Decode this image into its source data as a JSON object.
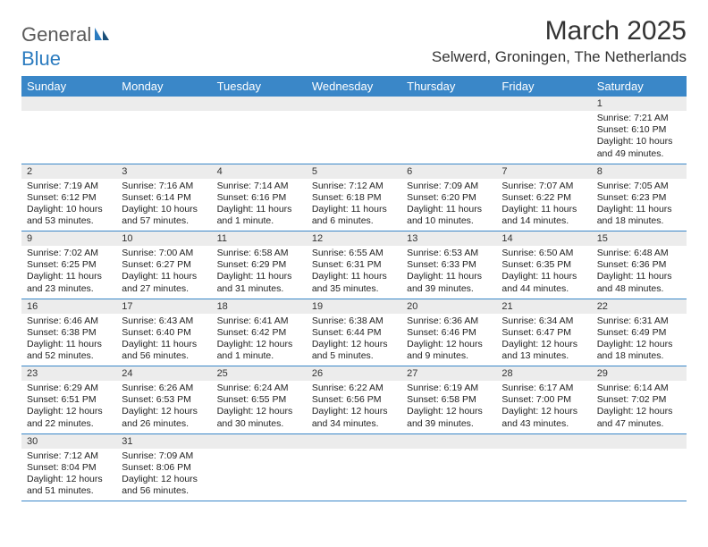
{
  "logo": {
    "word1": "General",
    "word2": "Blue"
  },
  "title": "March 2025",
  "location": "Selwerd, Groningen, The Netherlands",
  "day_headers": [
    "Sunday",
    "Monday",
    "Tuesday",
    "Wednesday",
    "Thursday",
    "Friday",
    "Saturday"
  ],
  "colors": {
    "header_bg": "#3a87c8",
    "header_text": "#ffffff",
    "daynum_bg": "#ececec",
    "border": "#3a87c8",
    "logo_gray": "#5a5a5a",
    "logo_blue": "#2b7bbf"
  },
  "weeks": [
    [
      null,
      null,
      null,
      null,
      null,
      null,
      {
        "n": "1",
        "sr": "Sunrise: 7:21 AM",
        "ss": "Sunset: 6:10 PM",
        "dl": "Daylight: 10 hours and 49 minutes."
      }
    ],
    [
      {
        "n": "2",
        "sr": "Sunrise: 7:19 AM",
        "ss": "Sunset: 6:12 PM",
        "dl": "Daylight: 10 hours and 53 minutes."
      },
      {
        "n": "3",
        "sr": "Sunrise: 7:16 AM",
        "ss": "Sunset: 6:14 PM",
        "dl": "Daylight: 10 hours and 57 minutes."
      },
      {
        "n": "4",
        "sr": "Sunrise: 7:14 AM",
        "ss": "Sunset: 6:16 PM",
        "dl": "Daylight: 11 hours and 1 minute."
      },
      {
        "n": "5",
        "sr": "Sunrise: 7:12 AM",
        "ss": "Sunset: 6:18 PM",
        "dl": "Daylight: 11 hours and 6 minutes."
      },
      {
        "n": "6",
        "sr": "Sunrise: 7:09 AM",
        "ss": "Sunset: 6:20 PM",
        "dl": "Daylight: 11 hours and 10 minutes."
      },
      {
        "n": "7",
        "sr": "Sunrise: 7:07 AM",
        "ss": "Sunset: 6:22 PM",
        "dl": "Daylight: 11 hours and 14 minutes."
      },
      {
        "n": "8",
        "sr": "Sunrise: 7:05 AM",
        "ss": "Sunset: 6:23 PM",
        "dl": "Daylight: 11 hours and 18 minutes."
      }
    ],
    [
      {
        "n": "9",
        "sr": "Sunrise: 7:02 AM",
        "ss": "Sunset: 6:25 PM",
        "dl": "Daylight: 11 hours and 23 minutes."
      },
      {
        "n": "10",
        "sr": "Sunrise: 7:00 AM",
        "ss": "Sunset: 6:27 PM",
        "dl": "Daylight: 11 hours and 27 minutes."
      },
      {
        "n": "11",
        "sr": "Sunrise: 6:58 AM",
        "ss": "Sunset: 6:29 PM",
        "dl": "Daylight: 11 hours and 31 minutes."
      },
      {
        "n": "12",
        "sr": "Sunrise: 6:55 AM",
        "ss": "Sunset: 6:31 PM",
        "dl": "Daylight: 11 hours and 35 minutes."
      },
      {
        "n": "13",
        "sr": "Sunrise: 6:53 AM",
        "ss": "Sunset: 6:33 PM",
        "dl": "Daylight: 11 hours and 39 minutes."
      },
      {
        "n": "14",
        "sr": "Sunrise: 6:50 AM",
        "ss": "Sunset: 6:35 PM",
        "dl": "Daylight: 11 hours and 44 minutes."
      },
      {
        "n": "15",
        "sr": "Sunrise: 6:48 AM",
        "ss": "Sunset: 6:36 PM",
        "dl": "Daylight: 11 hours and 48 minutes."
      }
    ],
    [
      {
        "n": "16",
        "sr": "Sunrise: 6:46 AM",
        "ss": "Sunset: 6:38 PM",
        "dl": "Daylight: 11 hours and 52 minutes."
      },
      {
        "n": "17",
        "sr": "Sunrise: 6:43 AM",
        "ss": "Sunset: 6:40 PM",
        "dl": "Daylight: 11 hours and 56 minutes."
      },
      {
        "n": "18",
        "sr": "Sunrise: 6:41 AM",
        "ss": "Sunset: 6:42 PM",
        "dl": "Daylight: 12 hours and 1 minute."
      },
      {
        "n": "19",
        "sr": "Sunrise: 6:38 AM",
        "ss": "Sunset: 6:44 PM",
        "dl": "Daylight: 12 hours and 5 minutes."
      },
      {
        "n": "20",
        "sr": "Sunrise: 6:36 AM",
        "ss": "Sunset: 6:46 PM",
        "dl": "Daylight: 12 hours and 9 minutes."
      },
      {
        "n": "21",
        "sr": "Sunrise: 6:34 AM",
        "ss": "Sunset: 6:47 PM",
        "dl": "Daylight: 12 hours and 13 minutes."
      },
      {
        "n": "22",
        "sr": "Sunrise: 6:31 AM",
        "ss": "Sunset: 6:49 PM",
        "dl": "Daylight: 12 hours and 18 minutes."
      }
    ],
    [
      {
        "n": "23",
        "sr": "Sunrise: 6:29 AM",
        "ss": "Sunset: 6:51 PM",
        "dl": "Daylight: 12 hours and 22 minutes."
      },
      {
        "n": "24",
        "sr": "Sunrise: 6:26 AM",
        "ss": "Sunset: 6:53 PM",
        "dl": "Daylight: 12 hours and 26 minutes."
      },
      {
        "n": "25",
        "sr": "Sunrise: 6:24 AM",
        "ss": "Sunset: 6:55 PM",
        "dl": "Daylight: 12 hours and 30 minutes."
      },
      {
        "n": "26",
        "sr": "Sunrise: 6:22 AM",
        "ss": "Sunset: 6:56 PM",
        "dl": "Daylight: 12 hours and 34 minutes."
      },
      {
        "n": "27",
        "sr": "Sunrise: 6:19 AM",
        "ss": "Sunset: 6:58 PM",
        "dl": "Daylight: 12 hours and 39 minutes."
      },
      {
        "n": "28",
        "sr": "Sunrise: 6:17 AM",
        "ss": "Sunset: 7:00 PM",
        "dl": "Daylight: 12 hours and 43 minutes."
      },
      {
        "n": "29",
        "sr": "Sunrise: 6:14 AM",
        "ss": "Sunset: 7:02 PM",
        "dl": "Daylight: 12 hours and 47 minutes."
      }
    ],
    [
      {
        "n": "30",
        "sr": "Sunrise: 7:12 AM",
        "ss": "Sunset: 8:04 PM",
        "dl": "Daylight: 12 hours and 51 minutes."
      },
      {
        "n": "31",
        "sr": "Sunrise: 7:09 AM",
        "ss": "Sunset: 8:06 PM",
        "dl": "Daylight: 12 hours and 56 minutes."
      },
      null,
      null,
      null,
      null,
      null
    ]
  ]
}
